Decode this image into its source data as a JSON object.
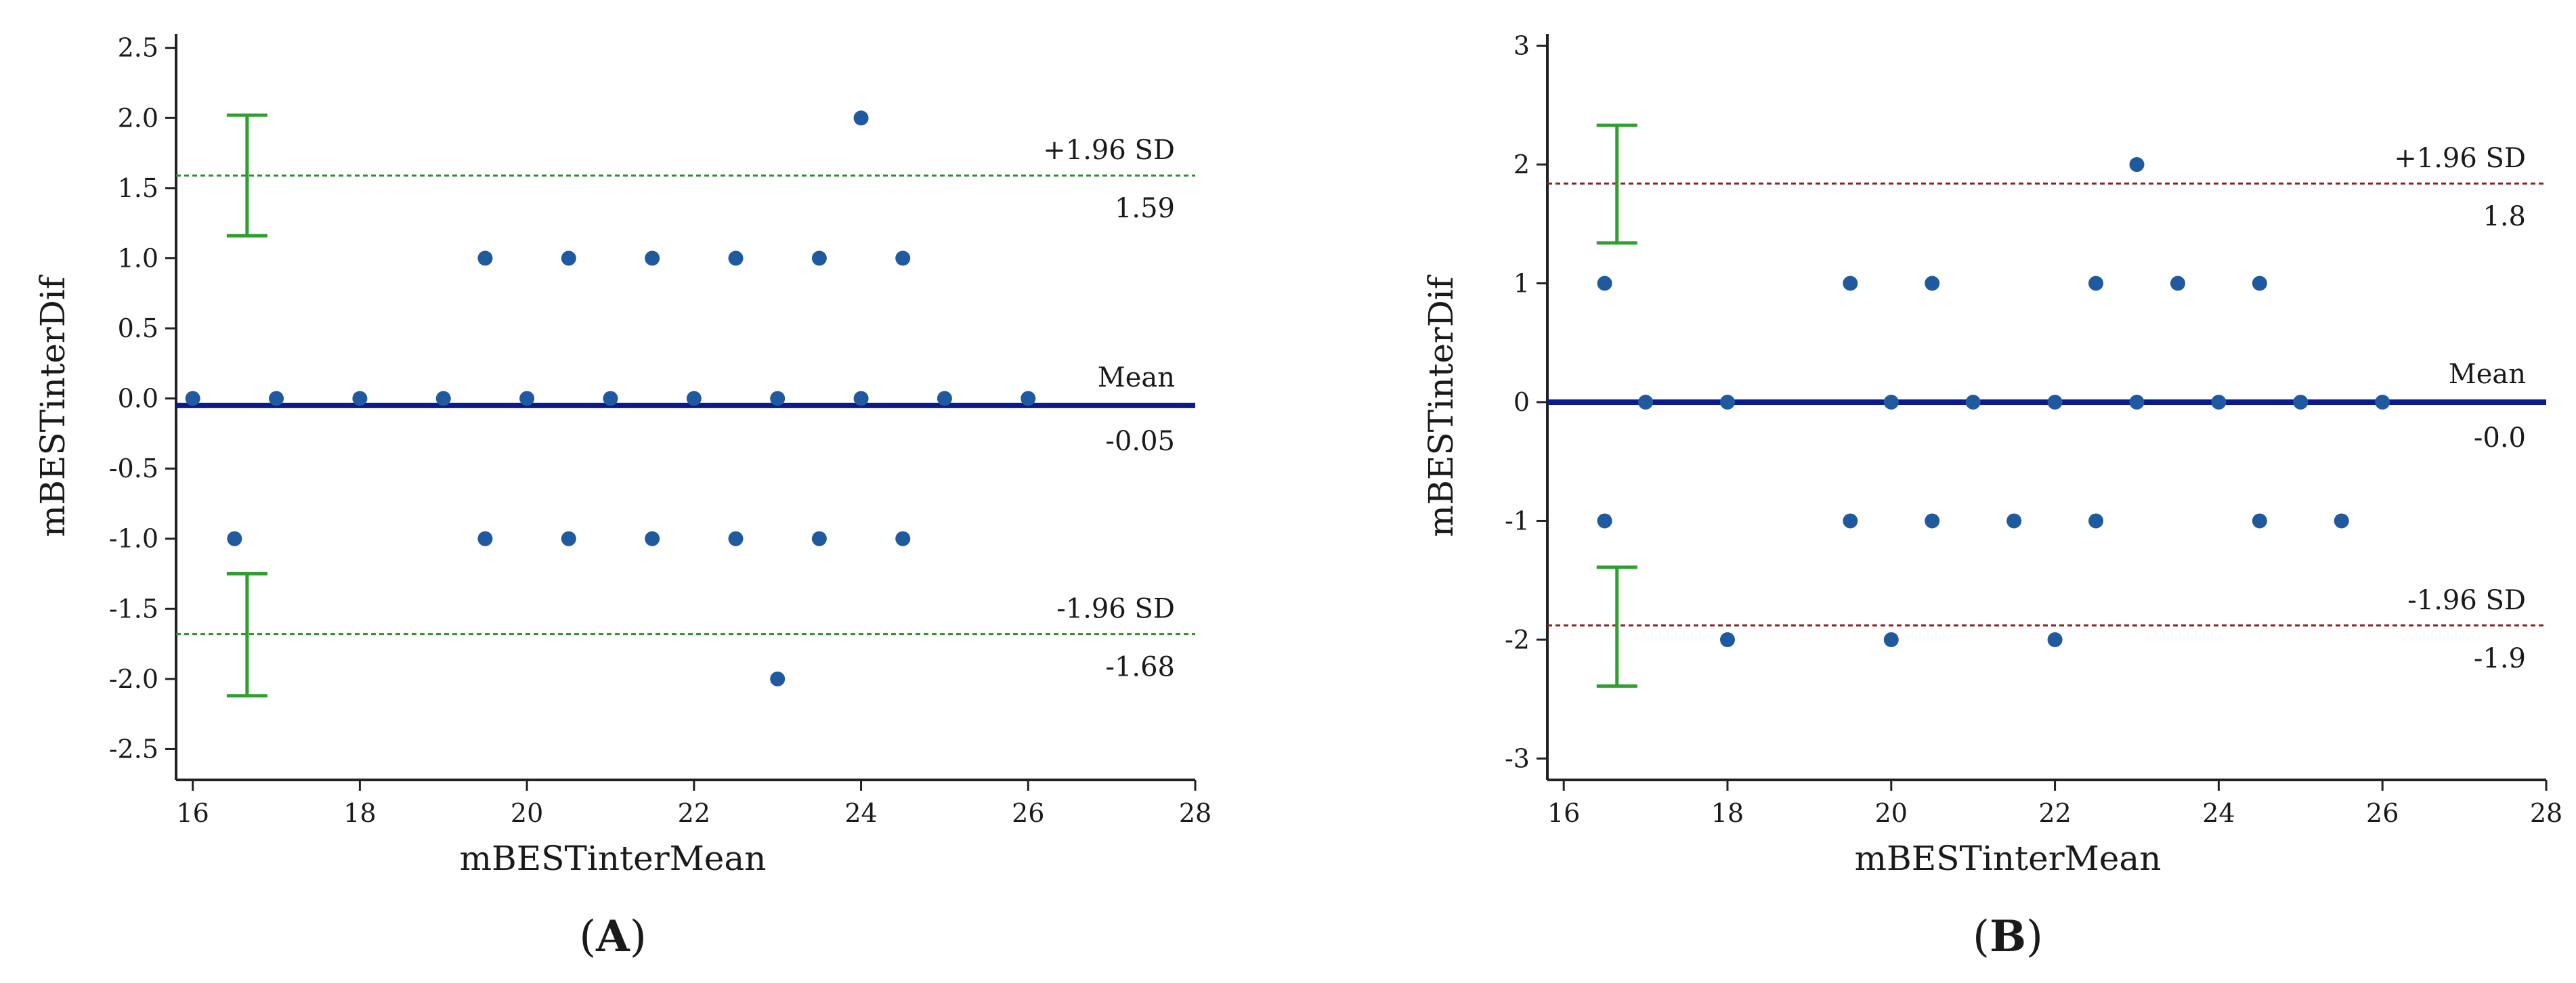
{
  "chart_data": [
    {
      "type": "scatter",
      "subtype": "bland-altman",
      "panel_label": "A",
      "xlabel": "mBESTinterMean",
      "ylabel": "mBESTinterDif",
      "xlim": [
        15.8,
        28
      ],
      "ylim": [
        -2.72,
        2.6
      ],
      "xticks": [
        16,
        18,
        20,
        22,
        24,
        26,
        28
      ],
      "yticks": [
        2.5,
        2.0,
        1.5,
        1.0,
        0.5,
        0.0,
        -0.5,
        -1.0,
        -1.5,
        -2.0,
        -2.5
      ],
      "ytick_labels": [
        "2.5",
        "2.0",
        "1.5",
        "1.0",
        "0.5",
        "0.0",
        "-0.5",
        "-1.0",
        "-1.5",
        "-2.0",
        "-2.5"
      ],
      "points": [
        {
          "x": 16,
          "y": 0
        },
        {
          "x": 17,
          "y": 0
        },
        {
          "x": 18,
          "y": 0
        },
        {
          "x": 19,
          "y": 0
        },
        {
          "x": 20,
          "y": 0
        },
        {
          "x": 21,
          "y": 0
        },
        {
          "x": 22,
          "y": 0
        },
        {
          "x": 23,
          "y": 0
        },
        {
          "x": 24,
          "y": 0
        },
        {
          "x": 25,
          "y": 0
        },
        {
          "x": 26,
          "y": 0
        },
        {
          "x": 19.5,
          "y": 1
        },
        {
          "x": 20.5,
          "y": 1
        },
        {
          "x": 21.5,
          "y": 1
        },
        {
          "x": 22.5,
          "y": 1
        },
        {
          "x": 23.5,
          "y": 1
        },
        {
          "x": 24.5,
          "y": 1
        },
        {
          "x": 24,
          "y": 2
        },
        {
          "x": 16.5,
          "y": -1
        },
        {
          "x": 19.5,
          "y": -1
        },
        {
          "x": 20.5,
          "y": -1
        },
        {
          "x": 21.5,
          "y": -1
        },
        {
          "x": 22.5,
          "y": -1
        },
        {
          "x": 23.5,
          "y": -1
        },
        {
          "x": 24.5,
          "y": -1
        },
        {
          "x": 23,
          "y": -2
        }
      ],
      "mean": {
        "value": -0.05,
        "label": "Mean",
        "value_label": "-0.05"
      },
      "upper_loa": {
        "value": 1.59,
        "label": "+1.96 SD",
        "value_label": "1.59",
        "ci": [
          1.16,
          2.02
        ]
      },
      "lower_loa": {
        "value": -1.68,
        "label": "-1.96 SD",
        "value_label": "-1.68",
        "ci": [
          -2.12,
          -1.25
        ]
      },
      "ci_x": 16.65,
      "colors": {
        "points": "#1f5aa0",
        "mean": "#0b1a8c",
        "loa": "#2e8b2e",
        "ci": "#2ea02e"
      }
    },
    {
      "type": "scatter",
      "subtype": "bland-altman",
      "panel_label": "B",
      "xlabel": "mBESTinterMean",
      "ylabel": "mBESTinterDif",
      "xlim": [
        15.8,
        28
      ],
      "ylim": [
        -3.18,
        3.1
      ],
      "xticks": [
        16,
        18,
        20,
        22,
        24,
        26,
        28
      ],
      "yticks": [
        3,
        2,
        1,
        0,
        -1,
        -2,
        -3
      ],
      "ytick_labels": [
        "3",
        "2",
        "1",
        "0",
        "-1",
        "-2",
        "-3"
      ],
      "points": [
        {
          "x": 16.5,
          "y": 1
        },
        {
          "x": 19.5,
          "y": 1
        },
        {
          "x": 20.5,
          "y": 1
        },
        {
          "x": 22.5,
          "y": 1
        },
        {
          "x": 23.5,
          "y": 1
        },
        {
          "x": 24.5,
          "y": 1
        },
        {
          "x": 23,
          "y": 2
        },
        {
          "x": 17,
          "y": 0
        },
        {
          "x": 18,
          "y": 0
        },
        {
          "x": 20,
          "y": 0
        },
        {
          "x": 21,
          "y": 0
        },
        {
          "x": 22,
          "y": 0
        },
        {
          "x": 23,
          "y": 0
        },
        {
          "x": 24,
          "y": 0
        },
        {
          "x": 25,
          "y": 0
        },
        {
          "x": 26,
          "y": 0
        },
        {
          "x": 16.5,
          "y": -1
        },
        {
          "x": 19.5,
          "y": -1
        },
        {
          "x": 20.5,
          "y": -1
        },
        {
          "x": 21.5,
          "y": -1
        },
        {
          "x": 22.5,
          "y": -1
        },
        {
          "x": 24.5,
          "y": -1
        },
        {
          "x": 25.5,
          "y": -1
        },
        {
          "x": 18,
          "y": -2
        },
        {
          "x": 20,
          "y": -2
        },
        {
          "x": 22,
          "y": -2
        }
      ],
      "mean": {
        "value": 0.0,
        "label": "Mean",
        "value_label": "-0.0"
      },
      "upper_loa": {
        "value": 1.84,
        "label": "+1.96 SD",
        "value_label": "1.8",
        "ci": [
          1.34,
          2.33
        ]
      },
      "lower_loa": {
        "value": -1.88,
        "label": "-1.96 SD",
        "value_label": "-1.9",
        "ci": [
          -2.39,
          -1.39
        ]
      },
      "ci_x": 16.65,
      "colors": {
        "points": "#1f5aa0",
        "mean": "#0b1a8c",
        "loa": "#8b2020",
        "ci": "#2ea02e"
      }
    }
  ]
}
